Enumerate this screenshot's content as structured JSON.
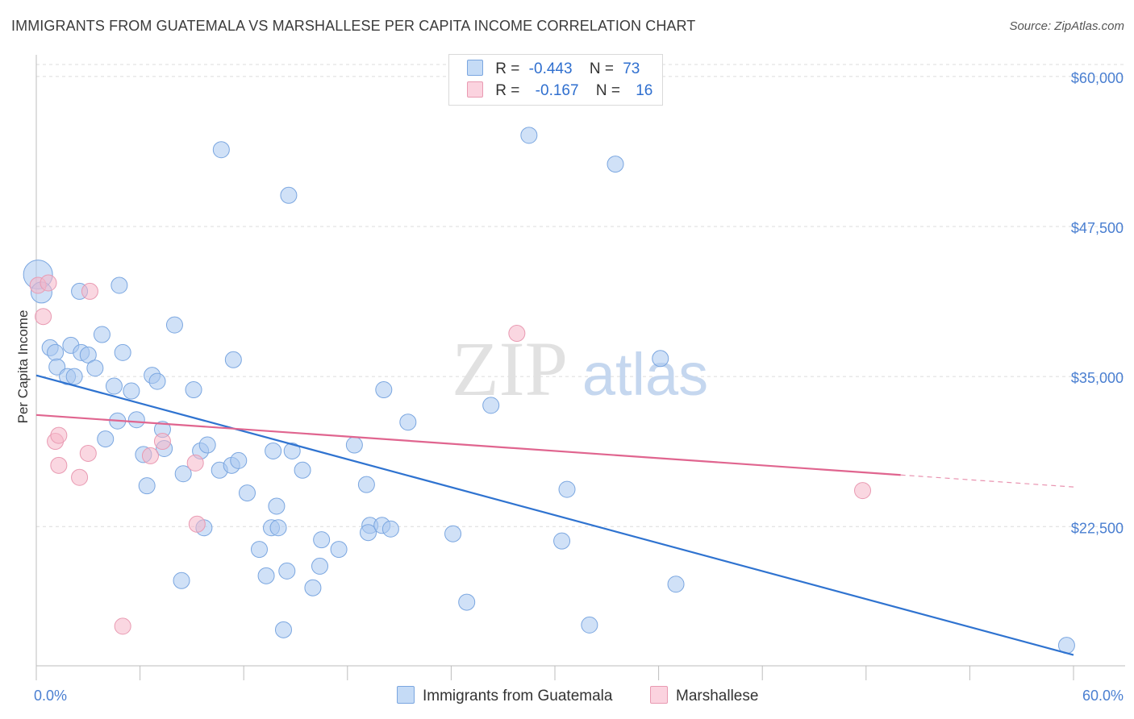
{
  "title": "IMMIGRANTS FROM GUATEMALA VS MARSHALLESE PER CAPITA INCOME CORRELATION CHART",
  "source": "Source: ZipAtlas.com",
  "watermark": {
    "zip": "ZIP",
    "atlas": "atlas"
  },
  "legend": {
    "rows": [
      {
        "r_label": "R =",
        "r_value": "-0.443",
        "n_label": "N =",
        "n_value": "73",
        "color": "#a9c8f0"
      },
      {
        "r_label": "R =",
        "r_value": "-0.167",
        "n_label": "N =",
        "n_value": "16",
        "color": "#f5b6c9"
      }
    ]
  },
  "bottom_legend": [
    {
      "label": "Immigrants from Guatemala",
      "color": "#a9c8f0"
    },
    {
      "label": "Marshallese",
      "color": "#f5b6c9"
    }
  ],
  "chart_data": {
    "type": "scatter",
    "title": "IMMIGRANTS FROM GUATEMALA VS MARSHALLESE PER CAPITA INCOME CORRELATION CHART",
    "xlabel": "",
    "ylabel": "Per Capita Income",
    "xlim": [
      0,
      60
    ],
    "ylim": [
      10900,
      61000
    ],
    "x_tick_labels": [
      "0.0%",
      "60.0%"
    ],
    "y_ticks": [
      22500,
      35000,
      47500,
      60000
    ],
    "y_tick_labels": [
      "$22,500",
      "$35,000",
      "$47,500",
      "$60,000"
    ],
    "grid": true,
    "series": [
      {
        "name": "Immigrants from Guatemala",
        "color": "#a9c8f0",
        "stroke": "#7aa6e0",
        "line_color": "#2f73d0",
        "trend": {
          "x0": 0,
          "y0": 35100,
          "x1": 60,
          "y1": 11800,
          "dashed_from": null
        },
        "points": [
          [
            0.1,
            43500,
            18
          ],
          [
            0.3,
            42000,
            13
          ],
          [
            2.5,
            42100,
            10
          ],
          [
            4.8,
            42600,
            10
          ],
          [
            0.8,
            37400,
            10
          ],
          [
            1.1,
            37000,
            10
          ],
          [
            2.0,
            37600,
            10
          ],
          [
            2.6,
            37000,
            10
          ],
          [
            1.2,
            35800,
            10
          ],
          [
            1.8,
            35000,
            10
          ],
          [
            2.2,
            35000,
            10
          ],
          [
            3.0,
            36800,
            10
          ],
          [
            3.4,
            35700,
            10
          ],
          [
            3.8,
            38500,
            10
          ],
          [
            4.5,
            34200,
            10
          ],
          [
            5.0,
            37000,
            10
          ],
          [
            5.5,
            33800,
            10
          ],
          [
            6.7,
            35100,
            10
          ],
          [
            7.0,
            34600,
            10
          ],
          [
            8.0,
            39300,
            10
          ],
          [
            9.1,
            33900,
            10
          ],
          [
            11.4,
            36400,
            10
          ],
          [
            4.7,
            31300,
            10
          ],
          [
            5.8,
            31400,
            10
          ],
          [
            7.3,
            30600,
            10
          ],
          [
            4.0,
            29800,
            10
          ],
          [
            6.2,
            28500,
            10
          ],
          [
            7.4,
            29000,
            10
          ],
          [
            9.5,
            28800,
            10
          ],
          [
            9.9,
            29300,
            10
          ],
          [
            8.5,
            26900,
            10
          ],
          [
            6.4,
            25900,
            10
          ],
          [
            10.6,
            27200,
            10
          ],
          [
            11.3,
            27600,
            10
          ],
          [
            11.7,
            28000,
            10
          ],
          [
            12.2,
            25300,
            10
          ],
          [
            13.7,
            28800,
            10
          ],
          [
            14.8,
            28800,
            10
          ],
          [
            15.4,
            27200,
            10
          ],
          [
            13.9,
            24200,
            10
          ],
          [
            9.7,
            22400,
            10
          ],
          [
            13.6,
            22400,
            10
          ],
          [
            14.0,
            22400,
            10
          ],
          [
            12.9,
            20600,
            10
          ],
          [
            16.5,
            21400,
            10
          ],
          [
            17.5,
            20600,
            10
          ],
          [
            16.4,
            19200,
            10
          ],
          [
            14.5,
            18800,
            10
          ],
          [
            13.3,
            18400,
            10
          ],
          [
            8.4,
            18000,
            10
          ],
          [
            16.0,
            17400,
            10
          ],
          [
            18.4,
            29300,
            10
          ],
          [
            19.1,
            26000,
            10
          ],
          [
            19.3,
            22600,
            10
          ],
          [
            19.2,
            22000,
            10
          ],
          [
            20.0,
            22600,
            10
          ],
          [
            20.5,
            22300,
            10
          ],
          [
            20.1,
            33900,
            10
          ],
          [
            21.5,
            31200,
            10
          ],
          [
            24.1,
            21900,
            10
          ],
          [
            24.9,
            16200,
            10
          ],
          [
            26.3,
            32600,
            10
          ],
          [
            28.5,
            55100,
            10
          ],
          [
            14.6,
            50100,
            10
          ],
          [
            30.7,
            25600,
            10
          ],
          [
            30.4,
            21300,
            10
          ],
          [
            32.0,
            14300,
            10
          ],
          [
            33.5,
            52700,
            10
          ],
          [
            36.1,
            36500,
            10
          ],
          [
            37.0,
            17700,
            10
          ],
          [
            14.3,
            13900,
            10
          ],
          [
            59.6,
            12600,
            10
          ],
          [
            10.7,
            53900,
            10
          ]
        ]
      },
      {
        "name": "Marshallese",
        "color": "#f5b6c9",
        "stroke": "#e99ab2",
        "line_color": "#e0658f",
        "trend": {
          "x0": 0,
          "y0": 31800,
          "x1": 60,
          "y1": 25800,
          "dashed_from": 50
        },
        "points": [
          [
            0.1,
            42600,
            10
          ],
          [
            0.7,
            42800,
            10
          ],
          [
            0.4,
            40000,
            10
          ],
          [
            3.1,
            42100,
            10
          ],
          [
            1.1,
            29600,
            10
          ],
          [
            1.3,
            30100,
            10
          ],
          [
            1.3,
            27600,
            10
          ],
          [
            2.5,
            26600,
            10
          ],
          [
            3.0,
            28600,
            10
          ],
          [
            6.6,
            28400,
            10
          ],
          [
            7.3,
            29600,
            10
          ],
          [
            9.2,
            27800,
            10
          ],
          [
            9.3,
            22700,
            10
          ],
          [
            5.0,
            14200,
            10
          ],
          [
            27.8,
            38600,
            10
          ],
          [
            47.8,
            25500,
            10
          ]
        ]
      }
    ]
  }
}
